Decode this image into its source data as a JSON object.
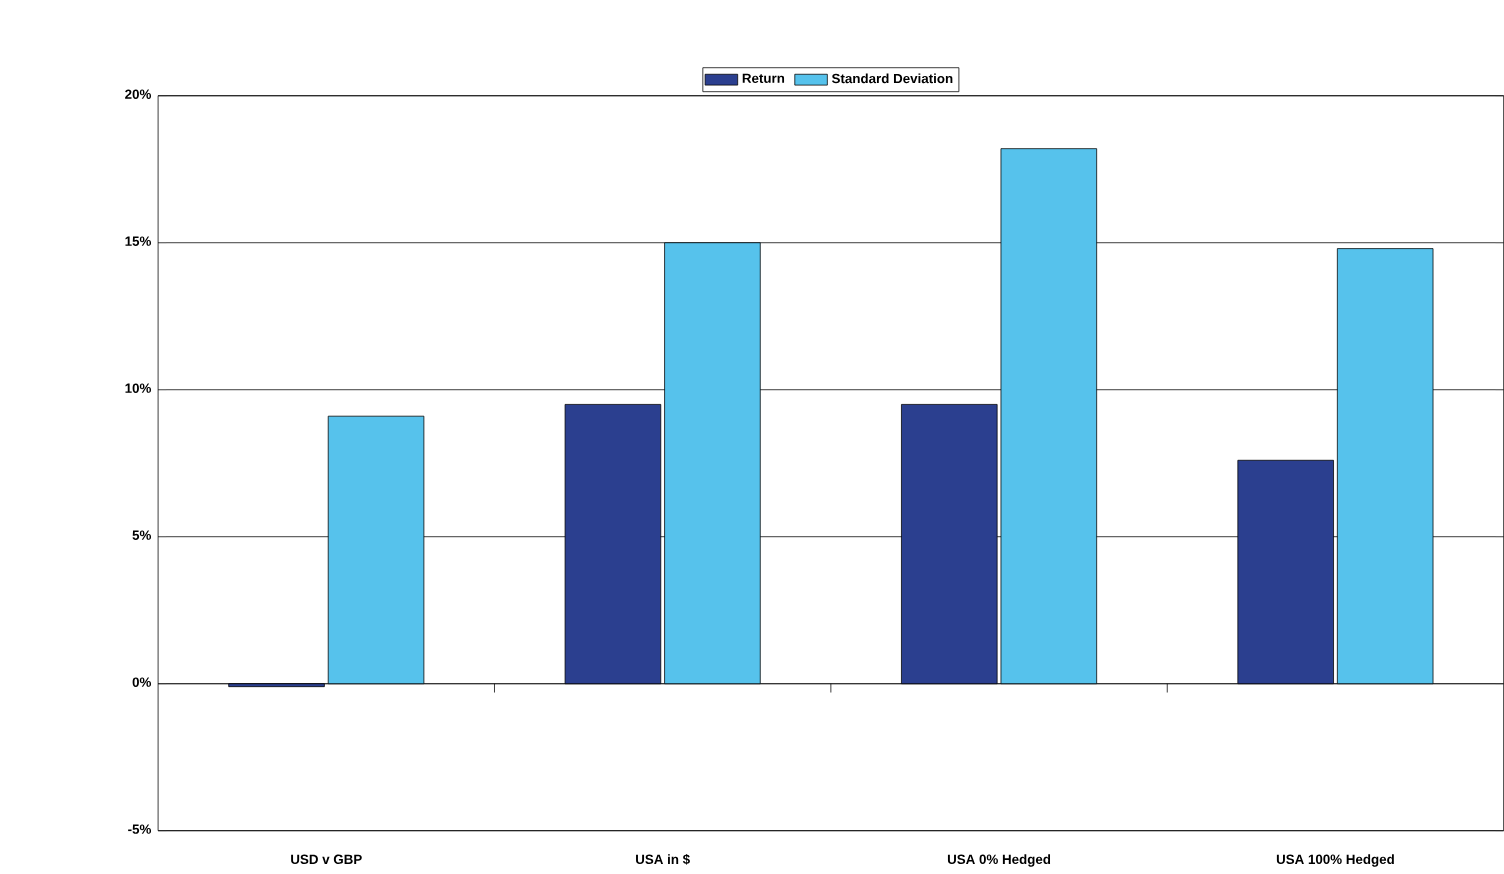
{
  "chart_data": {
    "type": "bar",
    "categories": [
      "USD v GBP",
      "USA in $",
      "USA 0% Hedged",
      "USA 100% Hedged"
    ],
    "series": [
      {
        "name": "Return",
        "color": "#2b3f8f",
        "values": [
          -0.1,
          9.5,
          9.5,
          7.6
        ]
      },
      {
        "name": "Standard Deviation",
        "color": "#56c2ec",
        "values": [
          9.1,
          15.0,
          18.2,
          14.8
        ]
      }
    ],
    "ylim": [
      -5,
      20
    ],
    "yticks": [
      {
        "value": -5,
        "label": "-5%"
      },
      {
        "value": 0,
        "label": "0%"
      },
      {
        "value": 5,
        "label": "5%"
      },
      {
        "value": 10,
        "label": "10%"
      },
      {
        "value": 15,
        "label": "15%"
      },
      {
        "value": 20,
        "label": "20%"
      }
    ],
    "grid": "y",
    "legend": "top"
  }
}
